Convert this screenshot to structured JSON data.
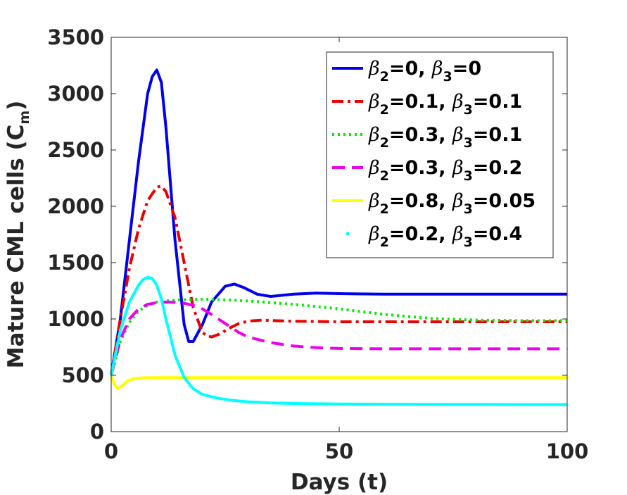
{
  "chart_data": {
    "type": "line",
    "title": "",
    "xlabel": "Days (t)",
    "ylabel_main": "Mature CML cells (C",
    "ylabel_sub": "m",
    "ylabel_close": ")",
    "xlim": [
      0,
      100
    ],
    "ylim": [
      0,
      3500
    ],
    "xticks": [
      0,
      50,
      100
    ],
    "yticks": [
      0,
      500,
      1000,
      1500,
      2000,
      2500,
      3000,
      3500
    ],
    "grid": false,
    "legend_position": "top-right",
    "series": [
      {
        "name": "β2=0, β3=0",
        "legend": {
          "b2": "β",
          "b2sub": "2",
          "b2val": "=0, ",
          "b3": "β",
          "b3sub": "3",
          "b3val": "=0"
        },
        "color": "#0000ee",
        "style": "solid",
        "x": [
          0,
          2,
          4,
          6,
          8,
          9,
          10,
          11,
          12,
          14,
          16,
          17,
          18,
          20,
          22,
          25,
          27,
          29,
          32,
          35,
          40,
          45,
          50,
          60,
          70,
          80,
          90,
          100
        ],
        "y": [
          500,
          1000,
          1700,
          2400,
          3000,
          3150,
          3210,
          3100,
          2700,
          1700,
          950,
          800,
          800,
          950,
          1150,
          1290,
          1310,
          1280,
          1220,
          1200,
          1220,
          1230,
          1225,
          1220,
          1220,
          1220,
          1220,
          1220
        ]
      },
      {
        "name": "β2=0.1, β3=0.1",
        "legend": {
          "b2": "β",
          "b2sub": "2",
          "b2val": "=0.1, ",
          "b3": "β",
          "b3sub": "3",
          "b3val": "=0.1"
        },
        "color": "#ee0000",
        "style": "dashdot",
        "x": [
          0,
          2,
          4,
          6,
          8,
          10,
          11,
          12,
          14,
          16,
          18,
          20,
          21,
          22,
          24,
          26,
          28,
          30,
          33,
          36,
          40,
          50,
          60,
          70,
          80,
          90,
          100
        ],
        "y": [
          500,
          1000,
          1450,
          1800,
          2050,
          2170,
          2180,
          2130,
          1900,
          1500,
          1100,
          880,
          850,
          840,
          870,
          920,
          960,
          980,
          990,
          985,
          980,
          975,
          975,
          975,
          975,
          975,
          975
        ]
      },
      {
        "name": "β2=0.3, β3=0.1",
        "legend": {
          "b2": "β",
          "b2sub": "2",
          "b2val": "=0.3, ",
          "b3": "β",
          "b3sub": "3",
          "b3val": "=0.1"
        },
        "color": "#00ee00",
        "style": "dotted",
        "x": [
          0,
          2,
          4,
          6,
          8,
          10,
          12,
          15,
          20,
          25,
          30,
          40,
          50,
          60,
          70,
          80,
          90,
          100
        ],
        "y": [
          500,
          800,
          970,
          1070,
          1120,
          1150,
          1160,
          1170,
          1175,
          1170,
          1160,
          1130,
          1090,
          1040,
          1005,
          990,
          985,
          985
        ]
      },
      {
        "name": "β2=0.3, β3=0.2",
        "legend": {
          "b2": "β",
          "b2sub": "2",
          "b2val": "=0.3, ",
          "b3": "β",
          "b3sub": "3",
          "b3val": "=0.2"
        },
        "color": "#ee00ee",
        "style": "dashed",
        "x": [
          0,
          2,
          4,
          6,
          8,
          10,
          12,
          14,
          16,
          18,
          20,
          22,
          25,
          28,
          30,
          35,
          40,
          45,
          50,
          60,
          70,
          80,
          90,
          100
        ],
        "y": [
          500,
          820,
          1000,
          1090,
          1130,
          1145,
          1150,
          1148,
          1140,
          1120,
          1090,
          1040,
          960,
          880,
          840,
          790,
          760,
          745,
          738,
          735,
          735,
          735,
          735,
          735
        ]
      },
      {
        "name": "β2=0.8, β3=0.05",
        "legend": {
          "b2": "β",
          "b2sub": "2",
          "b2val": "=0.8, ",
          "b3": "β",
          "b3sub": "3",
          "b3val": "=0.05"
        },
        "color": "#ffff00",
        "style": "solid",
        "x": [
          0,
          0.7,
          1.5,
          2.5,
          3.5,
          5,
          7,
          10,
          20,
          40,
          60,
          80,
          100
        ],
        "y": [
          500,
          420,
          380,
          410,
          450,
          470,
          478,
          480,
          480,
          480,
          480,
          480,
          480
        ]
      },
      {
        "name": "β2=0.2, β3=0.4",
        "legend": {
          "b2": "β",
          "b2sub": "2",
          "b2val": "=0.2, ",
          "b3": "β",
          "b3sub": "3",
          "b3val": "=0.4"
        },
        "color": "#00ffff",
        "style": "solid",
        "legend_style": "dot",
        "x": [
          0,
          2,
          4,
          6,
          7,
          8,
          9,
          10,
          11,
          12,
          14,
          16,
          18,
          20,
          23,
          26,
          30,
          35,
          40,
          50,
          60,
          70,
          80,
          90,
          100
        ],
        "y": [
          500,
          900,
          1150,
          1300,
          1350,
          1370,
          1360,
          1300,
          1180,
          1000,
          680,
          480,
          380,
          330,
          300,
          280,
          265,
          255,
          250,
          245,
          243,
          242,
          241,
          240,
          240
        ]
      }
    ]
  }
}
